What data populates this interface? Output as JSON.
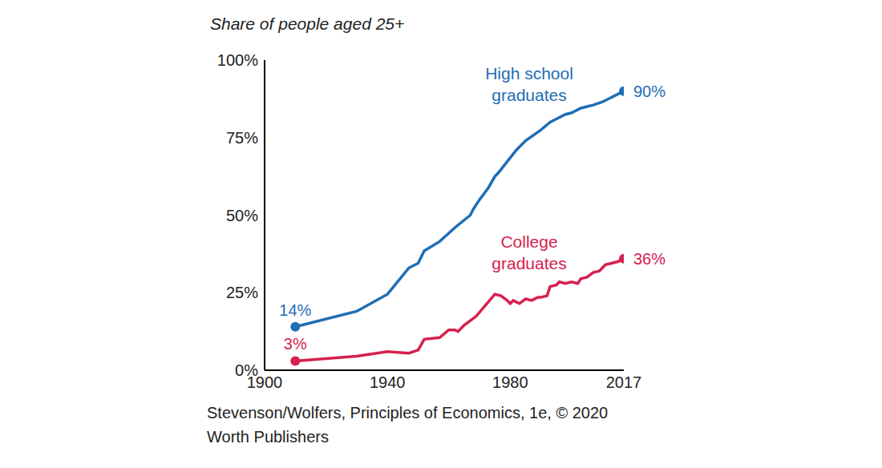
{
  "chart_data": {
    "type": "line",
    "title": "Share of people aged 25+",
    "source": [
      "Stevenson/Wolfers, Principles of Economics, 1e, © 2020",
      "Worth Publishers"
    ],
    "xlim": [
      1900,
      2017
    ],
    "xticks": [
      1900,
      1940,
      1980,
      2017
    ],
    "ylim": [
      0,
      100
    ],
    "yticks": [
      {
        "value": 0,
        "label": "0%"
      },
      {
        "value": 25,
        "label": "25%"
      },
      {
        "value": 50,
        "label": "50%"
      },
      {
        "value": 75,
        "label": "75%"
      },
      {
        "value": 100,
        "label": "100%"
      }
    ],
    "grid": false,
    "data_labels": true,
    "marker": "circle",
    "series": [
      {
        "name": "High school graduates",
        "color": "#1f6db5",
        "x": [
          1910,
          1930,
          1940,
          1947,
          1950,
          1952,
          1957,
          1962,
          1967,
          1968,
          1970,
          1973,
          1975,
          1976,
          1980,
          1982,
          1985,
          1990,
          1993,
          1995,
          1998,
          2000,
          2003,
          2005,
          2007,
          2010,
          2013,
          2017
        ],
        "values": [
          14,
          19,
          24.5,
          33,
          34.5,
          38.5,
          41.5,
          46,
          50,
          52,
          55,
          59,
          62.5,
          63.5,
          68.5,
          71,
          74,
          77.5,
          80,
          81,
          82.5,
          83,
          84.5,
          85,
          85.5,
          86.5,
          88,
          90
        ],
        "value_labels": [
          "14%",
          null,
          null,
          null,
          null,
          null,
          null,
          null,
          null,
          null,
          null,
          null,
          null,
          null,
          null,
          null,
          null,
          null,
          null,
          null,
          null,
          null,
          null,
          null,
          null,
          null,
          null,
          "90%"
        ]
      },
      {
        "name": "College graduates",
        "color": "#d6204e",
        "x": [
          1910,
          1930,
          1940,
          1947,
          1950,
          1952,
          1957,
          1960,
          1962,
          1963,
          1965,
          1967,
          1969,
          1972,
          1975,
          1977,
          1979,
          1980,
          1981,
          1983,
          1985,
          1987,
          1989,
          1990,
          1992,
          1993,
          1995,
          1996,
          1998,
          2000,
          2002,
          2003,
          2005,
          2007,
          2009,
          2011,
          2013,
          2015,
          2017
        ],
        "values": [
          3,
          4.5,
          6,
          5.5,
          6.5,
          10,
          10.5,
          13,
          13,
          12.5,
          14.5,
          16,
          17.5,
          21,
          24.5,
          24,
          22.5,
          21.5,
          22.5,
          21.5,
          23,
          22.5,
          23.5,
          23.5,
          24,
          27,
          27.5,
          28.5,
          28,
          28.5,
          28,
          29.5,
          30,
          31.5,
          32,
          34,
          34.5,
          35,
          36
        ],
        "value_labels": [
          "3%",
          null,
          null,
          null,
          null,
          null,
          null,
          null,
          null,
          null,
          null,
          null,
          null,
          null,
          null,
          null,
          null,
          null,
          null,
          null,
          null,
          null,
          null,
          null,
          null,
          null,
          null,
          null,
          null,
          null,
          null,
          null,
          null,
          null,
          null,
          null,
          null,
          null,
          "36%"
        ]
      }
    ]
  }
}
